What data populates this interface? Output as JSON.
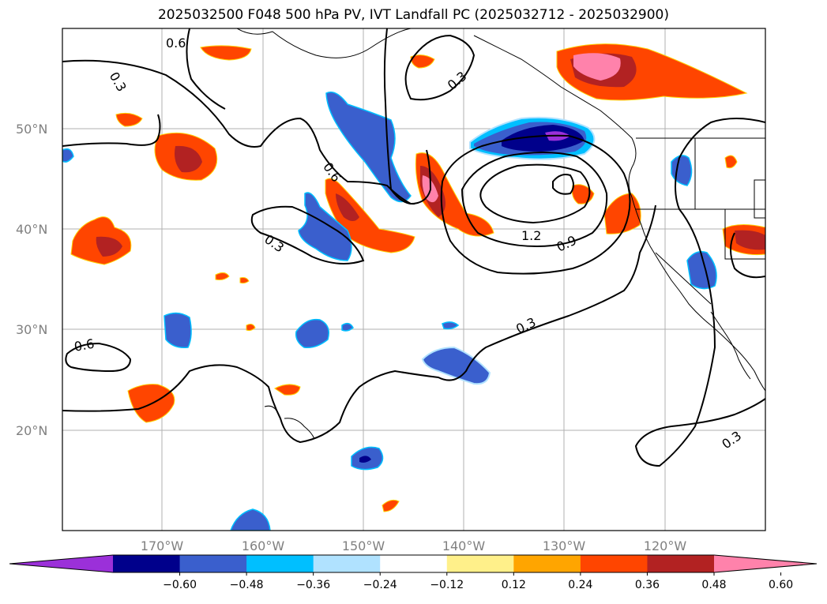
{
  "title": "2025032500 F048 500 hPa PV, IVT Landfall PC (2025032712 - 2025032900)",
  "map": {
    "lat_labels": [
      "50°N",
      "40°N",
      "30°N",
      "20°N"
    ],
    "lon_labels": [
      "170°W",
      "160°W",
      "150°W",
      "140°W",
      "130°W",
      "120°W"
    ],
    "gridlines": true,
    "contour_labels": [
      "0.6",
      "0.3",
      "0.3",
      "0.6",
      "0.3",
      "1.2",
      "0.9",
      "0.3",
      "0.6",
      "0.3"
    ]
  },
  "colorbar": {
    "labels": [
      "−0.60",
      "−0.48",
      "−0.36",
      "−0.24",
      "−0.12",
      "0.12",
      "0.24",
      "0.36",
      "0.48",
      "0.60"
    ],
    "colors": [
      "#9b30d9",
      "#00008b",
      "#3a5fcd",
      "#00bfff",
      "#b0e2ff",
      "#ffffff",
      "#fff08a",
      "#ffa500",
      "#ff4500",
      "#b22222",
      "#ff82ab"
    ]
  }
}
